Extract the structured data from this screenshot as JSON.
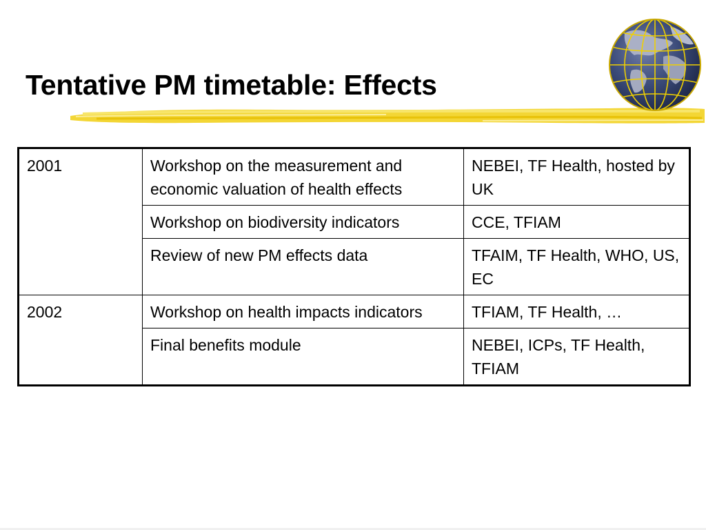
{
  "slide": {
    "title": "Tentative PM timetable: Effects"
  },
  "colors": {
    "accent_yellow": "#f2d21f",
    "accent_yellow_light": "#f7e56a",
    "globe_blue": "#3a4a78",
    "globe_land": "#9aa0b8",
    "globe_grid": "#f0d000",
    "table_border": "#000000"
  },
  "icons": {
    "logo": "globe-icon",
    "decoration": "brush-stroke"
  },
  "table": {
    "groups": [
      {
        "year": "2001",
        "rows": [
          {
            "event": "Workshop on the measurement and economic valuation of health effects",
            "lead": "NEBEI, TF Health, hosted by UK"
          },
          {
            "event": "Workshop on biodiversity indicators",
            "lead": "CCE, TFIAM"
          },
          {
            "event": "Review of new PM effects data",
            "lead": "TFAIM, TF Health, WHO, US, EC"
          }
        ]
      },
      {
        "year": "2002",
        "rows": [
          {
            "event": "Workshop on health impacts indicators",
            "lead": "TFIAM, TF Health, …"
          },
          {
            "event": "Final benefits module",
            "lead": "NEBEI, ICPs, TF Health, TFIAM"
          }
        ]
      }
    ]
  }
}
